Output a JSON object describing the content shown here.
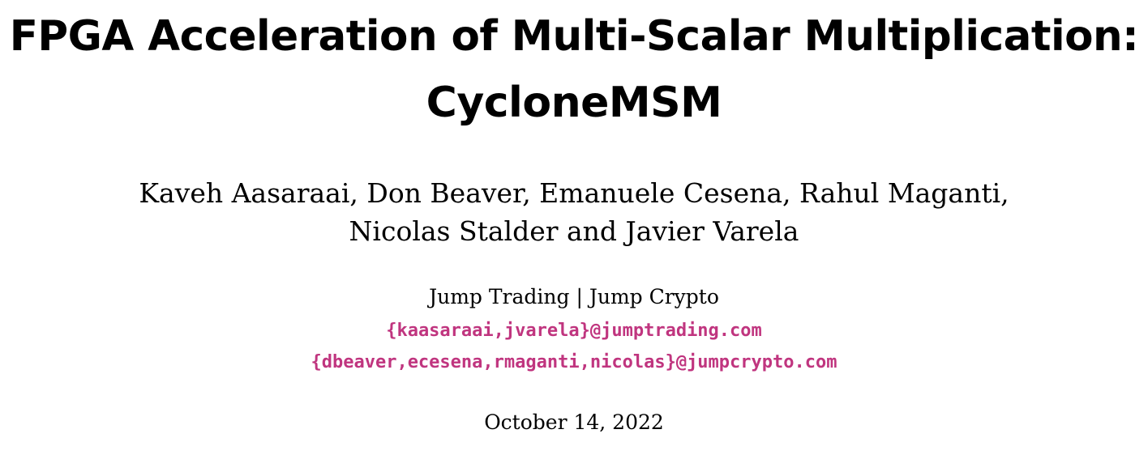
{
  "title": {
    "line1": "FPGA Acceleration of Multi-Scalar Multiplication:",
    "line2": "CycloneMSM"
  },
  "authors": {
    "line1": "Kaveh Aasaraai, Don Beaver, Emanuele Cesena, Rahul Maganti,",
    "line2": "Nicolas Stalder and Javier Varela"
  },
  "affiliation": "Jump Trading | Jump Crypto",
  "emails": [
    "{kaasaraai,jvarela}@jumptrading.com",
    "{dbeaver,ecesena,rmaganti,nicolas}@jumpcrypto.com"
  ],
  "date": "October 14, 2022",
  "colors": {
    "text": "#000000",
    "email_link": "#c0357f"
  }
}
